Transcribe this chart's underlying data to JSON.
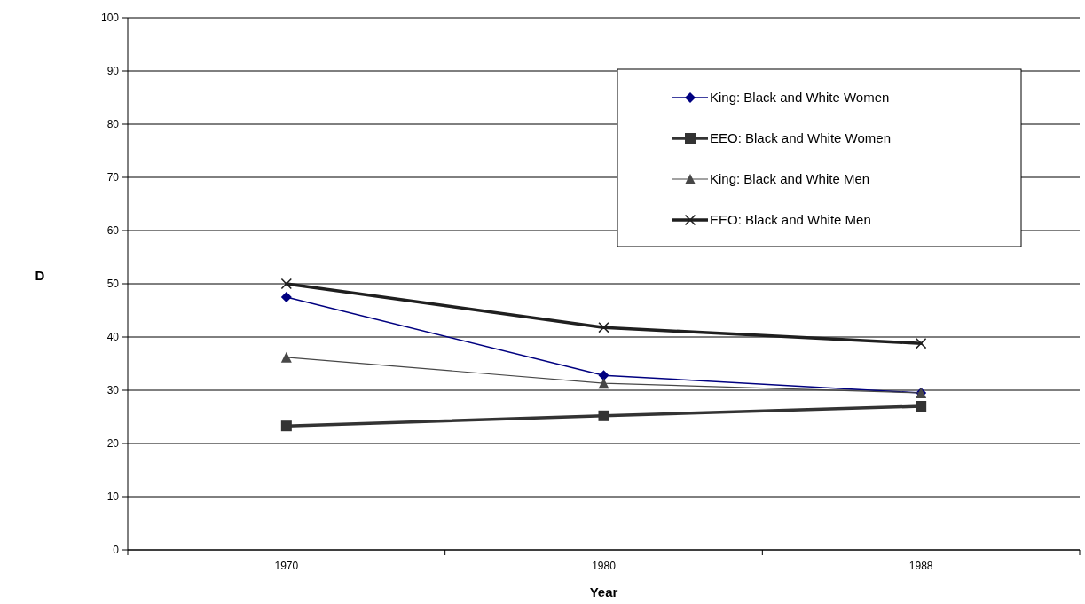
{
  "chart_data": {
    "type": "line",
    "xlabel": "Year",
    "ylabel": "D",
    "categories": [
      "1970",
      "1980",
      "1988"
    ],
    "series": [
      {
        "name": "King: Black and White Women",
        "color": "#000080",
        "marker": "diamond",
        "values": [
          47.5,
          32.8,
          29.5
        ]
      },
      {
        "name": "EEO: Black and White Women",
        "color": "#333333",
        "marker": "square",
        "values": [
          23.3,
          25.2,
          27.0
        ]
      },
      {
        "name": "King: Black and White Men",
        "color": "#474747",
        "marker": "triangle",
        "values": [
          36.2,
          31.3,
          29.5
        ]
      },
      {
        "name": "EEO: Black and White Men",
        "color": "#1f1f1f",
        "marker": "cross",
        "values": [
          50,
          41.8,
          38.8
        ]
      }
    ],
    "ylim": [
      0,
      100
    ],
    "yticks": [
      0,
      10,
      20,
      30,
      40,
      50,
      60,
      70,
      80,
      90,
      100
    ],
    "grid": "y",
    "legend": "top right"
  }
}
